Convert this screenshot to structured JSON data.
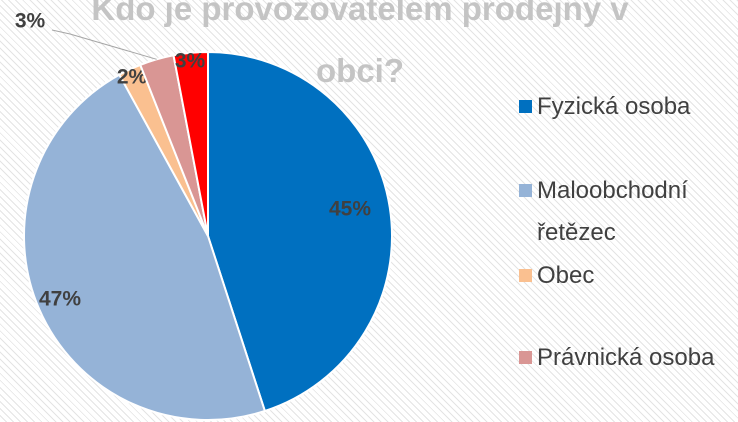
{
  "chart_data": {
    "type": "pie",
    "title": "Kdo je provozovatelem prodejny v obci?",
    "categories": [
      "Fyzická osoba",
      "Maloobchodní řetězec",
      "Obec",
      "Právnická osoba",
      null
    ],
    "values": [
      45,
      47,
      2,
      3,
      3
    ],
    "value_labels": [
      "45%",
      "47%",
      "2%",
      "3%",
      "3%"
    ],
    "colors": [
      "#0070c0",
      "#95b3d7",
      "#fac090",
      "#d99694",
      "#ff0000"
    ],
    "legend": "right"
  }
}
